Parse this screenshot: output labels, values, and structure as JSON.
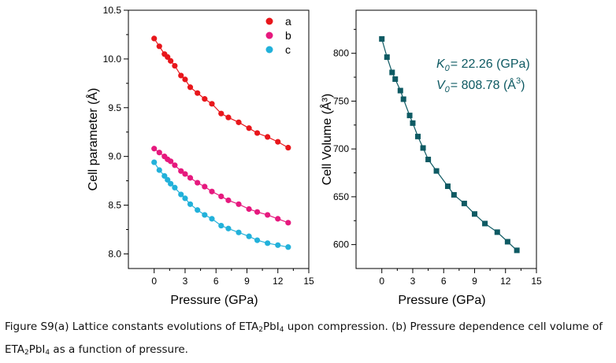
{
  "chart_data": [
    {
      "type": "scatter",
      "panel": "a",
      "title": "",
      "xlabel": "Pressure (GPa)",
      "ylabel": "Cell parameter (Å)",
      "xlim": [
        -2.5,
        15
      ],
      "ylim": [
        7.85,
        10.5
      ],
      "xticks": [
        "0",
        "3",
        "6",
        "9",
        "12",
        "15"
      ],
      "yticks": [
        "8.0",
        "8.5",
        "9.0",
        "9.5",
        "10.0",
        "10.5"
      ],
      "legend_position": "top-right",
      "grid": false,
      "fit_lines": true,
      "series": [
        {
          "name": "a",
          "color": "#e8161b",
          "x": [
            0,
            0.5,
            1.0,
            1.3,
            1.6,
            2.0,
            2.6,
            3.0,
            3.5,
            4.2,
            4.9,
            5.6,
            6.5,
            7.2,
            8.2,
            9.2,
            10.0,
            11.0,
            12.0,
            13.0
          ],
          "y": [
            10.21,
            10.13,
            10.05,
            10.02,
            9.98,
            9.93,
            9.83,
            9.79,
            9.71,
            9.65,
            9.59,
            9.54,
            9.44,
            9.4,
            9.35,
            9.29,
            9.24,
            9.2,
            9.15,
            9.09
          ]
        },
        {
          "name": "b",
          "color": "#e6197e",
          "x": [
            0,
            0.5,
            1.0,
            1.3,
            1.6,
            2.0,
            2.6,
            3.0,
            3.5,
            4.2,
            4.9,
            5.6,
            6.5,
            7.2,
            8.2,
            9.2,
            10.0,
            11.0,
            12.0,
            13.0
          ],
          "y": [
            9.08,
            9.04,
            9.0,
            8.97,
            8.95,
            8.91,
            8.85,
            8.82,
            8.78,
            8.73,
            8.69,
            8.64,
            8.59,
            8.55,
            8.51,
            8.46,
            8.43,
            8.4,
            8.36,
            8.32
          ]
        },
        {
          "name": "c",
          "color": "#22b1da",
          "x": [
            0,
            0.5,
            1.0,
            1.3,
            1.6,
            2.0,
            2.6,
            3.0,
            3.5,
            4.2,
            4.9,
            5.6,
            6.5,
            7.2,
            8.2,
            9.2,
            10.0,
            11.0,
            12.0,
            13.0
          ],
          "y": [
            8.94,
            8.86,
            8.8,
            8.76,
            8.72,
            8.68,
            8.61,
            8.57,
            8.51,
            8.45,
            8.4,
            8.36,
            8.29,
            8.26,
            8.22,
            8.18,
            8.14,
            8.11,
            8.09,
            8.07
          ]
        }
      ]
    },
    {
      "type": "scatter",
      "panel": "b",
      "title": "",
      "xlabel": "Pressure (GPa)",
      "ylabel": "Cell Volume (Å³)",
      "xlim": [
        -2.5,
        15
      ],
      "ylim": [
        575,
        845
      ],
      "xticks": [
        "0",
        "3",
        "6",
        "9",
        "12",
        "15"
      ],
      "yticks": [
        "600",
        "650",
        "700",
        "750",
        "800"
      ],
      "grid": false,
      "fit_lines": true,
      "annotations": {
        "k0_label": "K",
        "k0_sub": "0",
        "k0_value": "= 22.26 (GPa)",
        "v0_label": "V",
        "v0_sub": "0",
        "v0_value": "= 808.78 (Å",
        "v0_sup": "3",
        "v0_close": ")"
      },
      "series": [
        {
          "name": "",
          "color": "#0e5a63",
          "x": [
            0,
            0.5,
            1.0,
            1.3,
            1.8,
            2.1,
            2.7,
            3.0,
            3.5,
            4.0,
            4.5,
            5.3,
            6.4,
            7.0,
            8.0,
            9.0,
            10.0,
            11.2,
            12.2,
            13.1
          ],
          "y": [
            815,
            796,
            780,
            773,
            761,
            752,
            735,
            727,
            713,
            701,
            689,
            677,
            661,
            652,
            643,
            632,
            622,
            613,
            603,
            594
          ]
        }
      ]
    }
  ],
  "caption": {
    "line1a": "Figure S9(a) Lattice constants evolutions of ETA",
    "line1s1": "2",
    "line1b": "PbI",
    "line1s2": "4",
    "line1c": " upon compression. (b) Pressure dependence cell volume of",
    "line2a": "ETA",
    "line2s1": "2",
    "line2b": "PbI",
    "line2s2": "4",
    "line2c": " as a function of pressure."
  }
}
